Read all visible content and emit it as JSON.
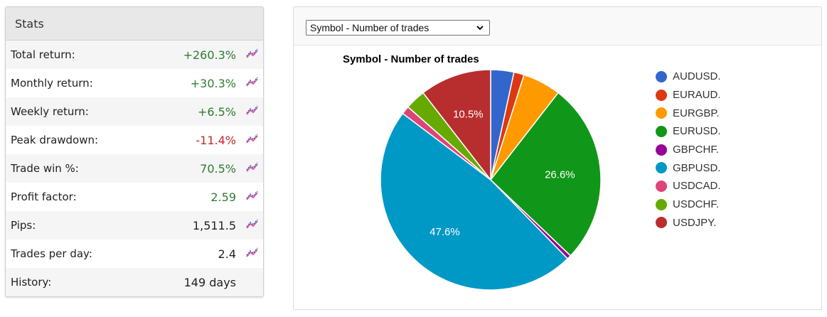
{
  "stats": {
    "header": "Stats",
    "rows": [
      {
        "label": "Total return:",
        "value": "+260.3%",
        "tone": "pos",
        "icon": true
      },
      {
        "label": "Monthly return:",
        "value": "+30.3%",
        "tone": "pos",
        "icon": true
      },
      {
        "label": "Weekly return:",
        "value": "+6.5%",
        "tone": "pos",
        "icon": true
      },
      {
        "label": "Peak drawdown:",
        "value": "-11.4%",
        "tone": "neg",
        "icon": true
      },
      {
        "label": "Trade win %:",
        "value": "70.5%",
        "tone": "pos",
        "icon": true
      },
      {
        "label": "Profit factor:",
        "value": "2.59",
        "tone": "pos",
        "icon": true
      },
      {
        "label": "Pips:",
        "value": "1,511.5",
        "tone": "neutral",
        "icon": true
      },
      {
        "label": "Trades per day:",
        "value": "2.4",
        "tone": "neutral",
        "icon": true
      },
      {
        "label": "History:",
        "value": "149 days",
        "tone": "neutral",
        "icon": false
      }
    ],
    "colors": {
      "positive": "#2e7d32",
      "negative": "#c62828",
      "icon_pink": "#e05a9b",
      "icon_blue": "#3a5fcd"
    }
  },
  "chart_panel": {
    "select_value": "Symbol - Number of trades"
  },
  "chart_data": {
    "type": "pie",
    "title": "Symbol - Number of trades",
    "legend_position": "right",
    "slices": [
      {
        "name": "AUDUSD.",
        "value": 3.4,
        "color": "#3366cc",
        "label": ""
      },
      {
        "name": "EURAUD.",
        "value": 1.5,
        "color": "#dc3912",
        "label": ""
      },
      {
        "name": "EURGBP.",
        "value": 5.6,
        "color": "#ff9900",
        "label": ""
      },
      {
        "name": "EURUSD.",
        "value": 26.6,
        "color": "#109618",
        "label": "26.6%"
      },
      {
        "name": "GBPCHF.",
        "value": 0.6,
        "color": "#990099",
        "label": ""
      },
      {
        "name": "GBPUSD.",
        "value": 47.6,
        "color": "#0099c6",
        "label": "47.6%"
      },
      {
        "name": "USDCAD.",
        "value": 1.2,
        "color": "#dd4477",
        "label": ""
      },
      {
        "name": "USDCHF.",
        "value": 3.0,
        "color": "#66aa00",
        "label": ""
      },
      {
        "name": "USDJPY.",
        "value": 10.5,
        "color": "#b82e2e",
        "label": "10.5%"
      }
    ]
  }
}
